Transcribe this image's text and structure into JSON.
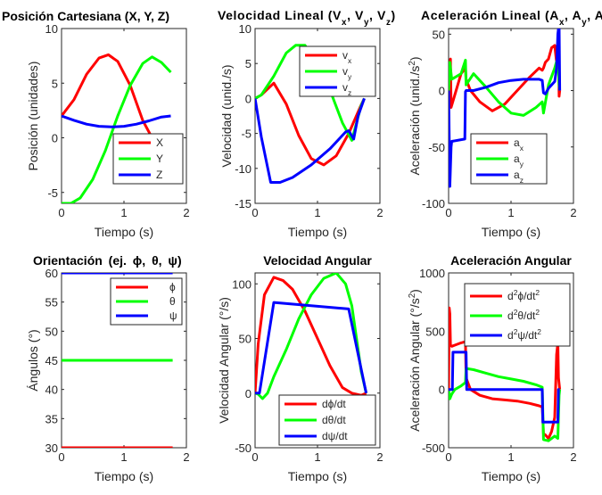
{
  "colors": {
    "red": "#ff0000",
    "green": "#00ff00",
    "blue": "#0000ff",
    "axis": "#262626"
  },
  "chart_data": [
    {
      "type": "line",
      "title": "Posición Cartesiana (X, Y, Z)",
      "xlabel": "Tiempo (s)",
      "ylabel": "Posición (unidades)",
      "xlim": [
        0,
        2
      ],
      "ylim": [
        -6,
        10
      ],
      "xticks": [
        "0",
        "1",
        "2"
      ],
      "yticks": [
        "-5",
        "0",
        "5",
        "10"
      ],
      "legend_position": "bottom-right",
      "series": [
        {
          "name": "X",
          "color": "red",
          "x": [
            0,
            0.2,
            0.4,
            0.6,
            0.75,
            0.9,
            1.1,
            1.3,
            1.45
          ],
          "y": [
            2,
            3.5,
            5.8,
            7.3,
            7.6,
            7.0,
            4.8,
            1.6,
            0
          ]
        },
        {
          "name": "Y",
          "color": "green",
          "x": [
            0,
            0.15,
            0.3,
            0.5,
            0.7,
            0.9,
            1.1,
            1.3,
            1.45,
            1.6,
            1.75
          ],
          "y": [
            -6,
            -6,
            -5.5,
            -3.8,
            -1.2,
            2,
            4.8,
            6.8,
            7.4,
            6.9,
            6.0
          ]
        },
        {
          "name": "Z",
          "color": "blue",
          "x": [
            0,
            0.2,
            0.4,
            0.6,
            0.8,
            1.0,
            1.2,
            1.4,
            1.6,
            1.75
          ],
          "y": [
            2,
            1.6,
            1.25,
            1.05,
            1.0,
            1.05,
            1.25,
            1.55,
            1.9,
            2.0
          ]
        }
      ]
    },
    {
      "type": "line",
      "title": "Velocidad Lineal (Vx, Vy, Vz)",
      "title_parts": [
        "Velocidad Lineal (V",
        "x",
        ", V",
        "y",
        ", V",
        "z",
        ")"
      ],
      "xlabel": "Tiempo (s)",
      "ylabel": "Velocidad (unid./s)",
      "xlim": [
        0,
        2
      ],
      "ylim": [
        -15,
        10
      ],
      "xticks": [
        "0",
        "1",
        "2"
      ],
      "yticks": [
        "-15",
        "-10",
        "-5",
        "0",
        "5",
        "10"
      ],
      "legend_position": "top-right",
      "series": [
        {
          "name": "v",
          "sub": "x",
          "color": "red",
          "x": [
            0,
            0.1,
            0.3,
            0.5,
            0.7,
            0.9,
            1.1,
            1.3,
            1.5,
            1.7,
            1.75
          ],
          "y": [
            0,
            0.5,
            2.2,
            -0.8,
            -5.3,
            -8.6,
            -9.5,
            -8.2,
            -5.0,
            -0.9,
            0
          ]
        },
        {
          "name": "v",
          "sub": "y",
          "color": "green",
          "x": [
            0,
            0.1,
            0.3,
            0.5,
            0.65,
            0.8,
            1.0,
            1.2,
            1.4,
            1.55,
            1.7,
            1.75
          ],
          "y": [
            0,
            0.5,
            3.2,
            6.5,
            7.6,
            7.6,
            5.0,
            1.2,
            -3.5,
            -6.0,
            -1.0,
            0
          ]
        },
        {
          "name": "v",
          "sub": "z",
          "color": "blue",
          "x": [
            0,
            0.1,
            0.25,
            0.4,
            0.6,
            0.9,
            1.2,
            1.45,
            1.5,
            1.58,
            1.65,
            1.75
          ],
          "y": [
            0,
            -5.5,
            -12.0,
            -12.0,
            -11.3,
            -9.5,
            -7.2,
            -4.8,
            -4.6,
            -5.8,
            -2.5,
            0
          ]
        }
      ]
    },
    {
      "type": "line",
      "title": "Aceleración Lineal (Ax, Ay, Az)",
      "title_parts": [
        "Aceleración Lineal (A",
        "x",
        ", A",
        "y",
        ", A",
        "z",
        ")"
      ],
      "xlabel": "Tiempo (s)",
      "ylabel": "Aceleración (unid./s2)",
      "xlim": [
        0,
        2
      ],
      "ylim": [
        -100,
        55
      ],
      "xticks": [
        "0",
        "1",
        "2"
      ],
      "yticks": [
        "-100",
        "-50",
        "0",
        "50"
      ],
      "legend_position": "bottom-right",
      "series": [
        {
          "name": "a",
          "sub": "x",
          "color": "red",
          "x": [
            0,
            0.01,
            0.03,
            0.04,
            0.2,
            0.27,
            0.28,
            0.35,
            0.5,
            0.7,
            0.9,
            1.1,
            1.3,
            1.45,
            1.5,
            1.52,
            1.55,
            1.6,
            1.65,
            1.7,
            1.73,
            1.76,
            1.77,
            1.78
          ],
          "y": [
            0,
            20,
            28,
            -15,
            15,
            20,
            10,
            0,
            -10,
            -18,
            -12,
            0,
            12,
            20,
            18,
            20,
            25,
            28,
            38,
            40,
            25,
            42,
            -5,
            0
          ]
        },
        {
          "name": "a",
          "sub": "y",
          "color": "green",
          "x": [
            0,
            0.02,
            0.05,
            0.2,
            0.27,
            0.28,
            0.4,
            0.6,
            0.8,
            1.0,
            1.2,
            1.4,
            1.5,
            1.52,
            1.6,
            1.7,
            1.75,
            1.77,
            1.78
          ],
          "y": [
            0,
            25,
            10,
            15,
            27,
            5,
            15,
            3,
            -10,
            -20,
            -22,
            -15,
            -10,
            -20,
            5,
            20,
            30,
            5,
            0
          ]
        },
        {
          "name": "a",
          "sub": "z",
          "color": "blue",
          "x": [
            0,
            0.02,
            0.04,
            0.05,
            0.26,
            0.27,
            0.28,
            0.4,
            0.6,
            0.8,
            1.0,
            1.2,
            1.45,
            1.5,
            1.52,
            1.55,
            1.6,
            1.65,
            1.7,
            1.73,
            1.75,
            1.77,
            1.78
          ],
          "y": [
            0,
            -85,
            -50,
            -45,
            -43,
            -1,
            0,
            0,
            3,
            7,
            9,
            10,
            10,
            9,
            -2,
            -3,
            2,
            5,
            8,
            20,
            50,
            60,
            0
          ]
        }
      ]
    },
    {
      "type": "line",
      "title": "Orientación (ej. ϕ, θ, ψ)",
      "xlabel": "Tiempo (s)",
      "ylabel": "Ángulos (°)",
      "xlim": [
        0,
        2
      ],
      "ylim": [
        30,
        60
      ],
      "xticks": [
        "0",
        "1",
        "2"
      ],
      "yticks": [
        "30",
        "35",
        "40",
        "45",
        "50",
        "55",
        "60"
      ],
      "legend_position": "top-right",
      "series": [
        {
          "name": "ϕ",
          "color": "red",
          "x": [
            0,
            1.78
          ],
          "y": [
            30,
            30
          ]
        },
        {
          "name": "θ",
          "color": "green",
          "x": [
            0,
            1.78
          ],
          "y": [
            45,
            45
          ]
        },
        {
          "name": "ψ",
          "color": "blue",
          "x": [
            0,
            1.78
          ],
          "y": [
            60,
            60
          ]
        }
      ]
    },
    {
      "type": "line",
      "title": "Velocidad Angular",
      "xlabel": "Tiempo (s)",
      "ylabel": "Velocidad Angular (°/s)",
      "xlim": [
        0,
        2
      ],
      "ylim": [
        -50,
        110
      ],
      "xticks": [
        "0",
        "1",
        "2"
      ],
      "yticks": [
        "-50",
        "0",
        "50",
        "100"
      ],
      "legend_position": "bottom-right",
      "series": [
        {
          "name": "dϕ/dt",
          "color": "red",
          "x": [
            0,
            0.05,
            0.15,
            0.3,
            0.45,
            0.6,
            0.8,
            1.0,
            1.2,
            1.4,
            1.55,
            1.7,
            1.78
          ],
          "y": [
            0,
            45,
            90,
            106,
            103,
            95,
            75,
            50,
            25,
            5,
            0,
            -2,
            0
          ]
        },
        {
          "name": "dθ/dt",
          "color": "green",
          "x": [
            0,
            0.05,
            0.12,
            0.2,
            0.3,
            0.5,
            0.7,
            0.9,
            1.1,
            1.3,
            1.45,
            1.55,
            1.7,
            1.78
          ],
          "y": [
            0,
            -1,
            -5,
            0,
            15,
            40,
            68,
            90,
            105,
            110,
            100,
            80,
            20,
            0
          ]
        },
        {
          "name": "dψ/dt",
          "color": "blue",
          "x": [
            0,
            0.07,
            0.3,
            1.5,
            1.78
          ],
          "y": [
            0,
            0,
            83,
            77,
            0
          ]
        }
      ]
    },
    {
      "type": "line",
      "title": "Aceleración Angular",
      "xlabel": "Tiempo (s)",
      "ylabel": "Aceleración Angular (°/s2)",
      "xlim": [
        0,
        2
      ],
      "ylim": [
        -500,
        1000
      ],
      "xticks": [
        "0",
        "1",
        "2"
      ],
      "yticks": [
        "-500",
        "0",
        "500",
        "1000"
      ],
      "legend_position": "top-right",
      "series": [
        {
          "name": "d2ϕ/dt2",
          "color": "red",
          "x": [
            0,
            0.01,
            0.02,
            0.03,
            0.05,
            0.1,
            0.2,
            0.27,
            0.28,
            0.35,
            0.5,
            0.7,
            0.9,
            1.1,
            1.3,
            1.45,
            1.5,
            1.52,
            1.55,
            1.6,
            1.65,
            1.7,
            1.73,
            1.75,
            1.76,
            1.78
          ],
          "y": [
            0,
            700,
            650,
            380,
            370,
            380,
            400,
            410,
            100,
            0,
            -50,
            -80,
            -90,
            -100,
            -120,
            -140,
            -150,
            -380,
            -390,
            -420,
            -360,
            -240,
            300,
            400,
            100,
            0
          ]
        },
        {
          "name": "d2θ/dt2",
          "color": "green",
          "x": [
            0,
            0.02,
            0.05,
            0.1,
            0.2,
            0.27,
            0.28,
            0.4,
            0.6,
            0.8,
            1.0,
            1.2,
            1.4,
            1.5,
            1.52,
            1.6,
            1.7,
            1.75,
            1.77,
            1.78
          ],
          "y": [
            0,
            -80,
            -40,
            0,
            30,
            60,
            180,
            170,
            140,
            110,
            90,
            70,
            40,
            20,
            -430,
            -440,
            -400,
            -420,
            -50,
            0
          ]
        },
        {
          "name": "d2ψ/dt2",
          "color": "blue",
          "x": [
            0,
            0.06,
            0.07,
            0.28,
            0.29,
            1.5,
            1.51,
            1.75,
            1.76,
            1.78
          ],
          "y": [
            0,
            0,
            320,
            320,
            0,
            0,
            -280,
            -280,
            0,
            0
          ]
        }
      ]
    }
  ]
}
